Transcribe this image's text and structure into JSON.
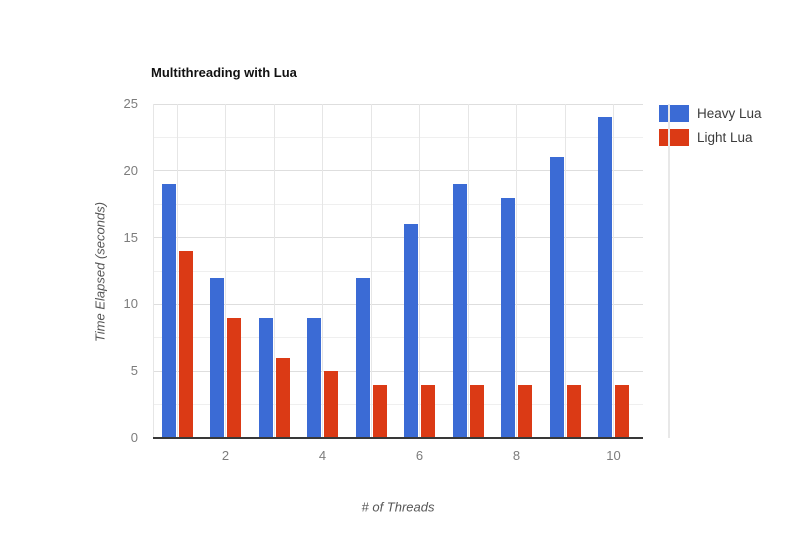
{
  "page": {
    "background": "#ffffff"
  },
  "chart_data": {
    "type": "bar",
    "title": "Multithreading with Lua",
    "xlabel": "# of Threads",
    "ylabel": "Time Elapsed (seconds)",
    "categories": [
      1,
      2,
      3,
      4,
      5,
      6,
      7,
      8,
      9,
      10
    ],
    "x_axis_labeled_ticks": [
      2,
      4,
      6,
      8,
      10
    ],
    "series": [
      {
        "name": "Heavy Lua",
        "color": "#3b6bd5",
        "values": [
          19,
          12,
          9,
          9,
          12,
          16,
          19,
          18,
          21,
          24
        ]
      },
      {
        "name": "Light Lua",
        "color": "#db3a15",
        "values": [
          14,
          9,
          6,
          5,
          4,
          4,
          4,
          4,
          4,
          4
        ]
      }
    ],
    "ylim": [
      0,
      25
    ],
    "y_major_ticks": [
      0,
      5,
      10,
      15,
      20,
      25
    ],
    "y_minor_ticks": [
      2.5,
      7.5,
      12.5,
      17.5,
      22.5
    ],
    "grid": true,
    "legend_position": "right-top",
    "colors": {
      "grid_major": "#dedede",
      "grid_minor": "#efefef",
      "grid_vertical": "#e6e6e6",
      "boundary": "#e8e8e8",
      "baseline": "#383838",
      "tick_label": "#7c7c7c",
      "axis_title": "#565656",
      "title": "#111111",
      "legend_text": "#3c3c3c"
    }
  }
}
